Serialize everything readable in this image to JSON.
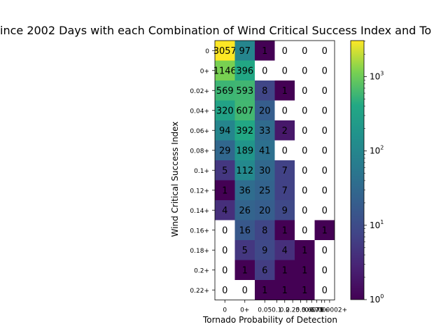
{
  "chart_data": {
    "type": "heatmap",
    "title": "ince 2002 Days with each Combination of Wind Critical Success Index and To",
    "xlabel": "Tornado Probability of Detection",
    "ylabel": "Wind Critical Success Index",
    "x_tick_labels": [
      "0",
      "0+",
      "0.05",
      "0.1",
      "0.2",
      "0.25",
      "0.5",
      "0.6",
      "0.67",
      "0.75",
      "1",
      "0+",
      "0.000002+"
    ],
    "x_categories": [
      "0",
      "0+",
      "0.05+",
      "0.1+",
      "0.2+",
      "0.25+"
    ],
    "y_categories": [
      "0",
      "0+",
      "0.02+",
      "0.04+",
      "0.06+",
      "0.08+",
      "0.1+",
      "0.12+",
      "0.14+",
      "0.16+",
      "0.18+",
      "0.2+",
      "0.22+"
    ],
    "values": [
      [
        3057,
        97,
        1,
        0,
        0,
        0
      ],
      [
        1146,
        396,
        0,
        0,
        0,
        0
      ],
      [
        569,
        593,
        8,
        1,
        0,
        0
      ],
      [
        320,
        607,
        20,
        0,
        0,
        0
      ],
      [
        94,
        392,
        33,
        2,
        0,
        0
      ],
      [
        29,
        189,
        41,
        0,
        0,
        0
      ],
      [
        5,
        112,
        30,
        7,
        0,
        0
      ],
      [
        1,
        36,
        25,
        7,
        0,
        0
      ],
      [
        4,
        26,
        20,
        9,
        0,
        0
      ],
      [
        0,
        16,
        8,
        1,
        0,
        1
      ],
      [
        0,
        5,
        9,
        4,
        1,
        0
      ],
      [
        0,
        1,
        6,
        1,
        1,
        0
      ],
      [
        0,
        0,
        1,
        1,
        1,
        0
      ]
    ],
    "color_scale": "log",
    "colormap": "viridis",
    "colorbar_ticks": [
      "10^0",
      "10^1",
      "10^2",
      "10^3"
    ],
    "colorbar_range": [
      1,
      3057
    ]
  }
}
